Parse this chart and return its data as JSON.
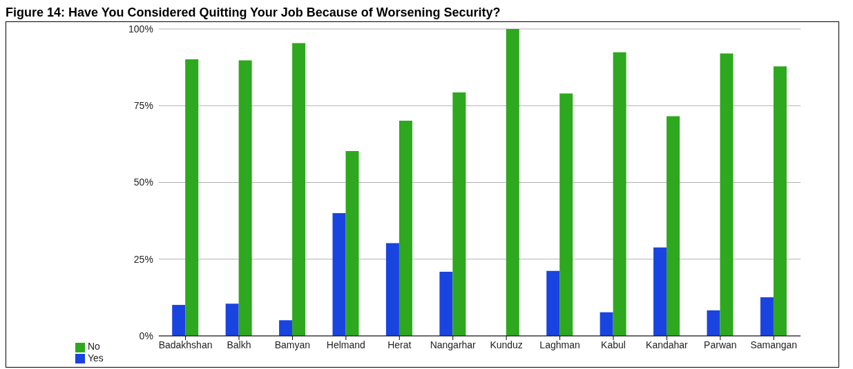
{
  "chart_data": {
    "type": "bar",
    "title": "Figure 14: Have You Considered Quitting Your Job Because of Worsening Security?",
    "categories": [
      "Badakhshan",
      "Balkh",
      "Bamyan",
      "Helmand",
      "Herat",
      "Nangarhar",
      "Kunduz",
      "Laghman",
      "Kabul",
      "Kandahar",
      "Parwan",
      "Samangan"
    ],
    "series": [
      {
        "name": "Yes",
        "color": "#1a44e0",
        "values": [
          10.1,
          10.5,
          5.1,
          40.0,
          30.2,
          20.9,
          0,
          21.2,
          7.7,
          28.8,
          8.3,
          12.6
        ]
      },
      {
        "name": "No",
        "color": "#2ea81e",
        "values": [
          90.1,
          89.8,
          95.4,
          60.2,
          70.1,
          79.3,
          100,
          79.0,
          92.4,
          71.6,
          92.0,
          87.8
        ]
      }
    ],
    "ylim": [
      0,
      100
    ],
    "yticks": [
      {
        "value": 0,
        "label": "0%"
      },
      {
        "value": 25,
        "label": "25%"
      },
      {
        "value": 50,
        "label": "50%"
      },
      {
        "value": 75,
        "label": "75%"
      },
      {
        "value": 100,
        "label": "100%"
      }
    ],
    "grid": "y",
    "legend": "bottom left"
  }
}
